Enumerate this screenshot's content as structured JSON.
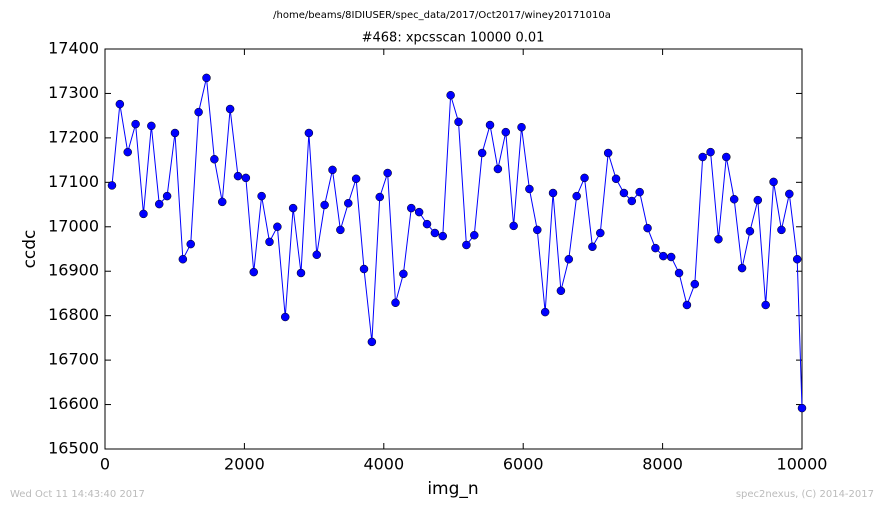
{
  "chart_data": {
    "type": "line",
    "suptitle": "/home/beams/8IDIUSER/spec_data/2017/Oct2017/winey20171010a",
    "title": "#468: xpcsscan 10000 0.01",
    "xlabel": "img_n",
    "ylabel": "ccdc",
    "footer_left": "Wed Oct 11 14:43:40 2017",
    "footer_right": "spec2nexus, (C) 2014-2017",
    "x": [
      100,
      213,
      326,
      439,
      552,
      665,
      778,
      891,
      1004,
      1117,
      1230,
      1343,
      1456,
      1569,
      1682,
      1795,
      1908,
      2021,
      2134,
      2247,
      2360,
      2473,
      2586,
      2699,
      2812,
      2925,
      3038,
      3151,
      3264,
      3377,
      3490,
      3603,
      3716,
      3829,
      3942,
      4055,
      4168,
      4281,
      4394,
      4507,
      4620,
      4733,
      4846,
      4959,
      5072,
      5185,
      5298,
      5411,
      5524,
      5637,
      5750,
      5863,
      5976,
      6089,
      6202,
      6315,
      6428,
      6541,
      6654,
      6767,
      6880,
      6993,
      7106,
      7219,
      7332,
      7445,
      7558,
      7671,
      7784,
      7897,
      8010,
      8123,
      8236,
      8349,
      8462,
      8575,
      8688,
      8801,
      8914,
      9027,
      9140,
      9253,
      9366,
      9479,
      9592,
      9705,
      9818,
      9931,
      10000
    ],
    "series": [
      {
        "color": "#0000ff",
        "values": [
          17093,
          17276,
          17168,
          17231,
          17029,
          17227,
          17051,
          17069,
          17211,
          16927,
          16961,
          17258,
          17335,
          17152,
          17056,
          17265,
          17114,
          17110,
          16898,
          17069,
          16966,
          17000,
          16797,
          17042,
          16896,
          17211,
          16937,
          17049,
          17128,
          16993,
          17053,
          17108,
          16905,
          16741,
          17067,
          17121,
          16829,
          16894,
          17042,
          17033,
          17006,
          16986,
          16979,
          17296,
          17236,
          16959,
          16981,
          17166,
          17229,
          17130,
          17213,
          17002,
          17224,
          17085,
          16993,
          16808,
          17076,
          16856,
          16927,
          17069,
          17110,
          16955,
          16986,
          17166,
          17108,
          17076,
          17058,
          17078,
          16997,
          16952,
          16934,
          16932,
          16896,
          16824,
          16871,
          17157,
          17168,
          16972,
          17157,
          17062,
          16907,
          16990,
          17060,
          16824,
          17101,
          16993,
          17074,
          16927,
          16592
        ]
      }
    ],
    "xlim": [
      0,
      10000
    ],
    "xticks": [
      0,
      2000,
      4000,
      6000,
      8000,
      10000
    ],
    "ylim": [
      16500,
      17400
    ],
    "yticks": [
      16500,
      16600,
      16700,
      16800,
      16900,
      17000,
      17100,
      17200,
      17300,
      17400
    ]
  }
}
